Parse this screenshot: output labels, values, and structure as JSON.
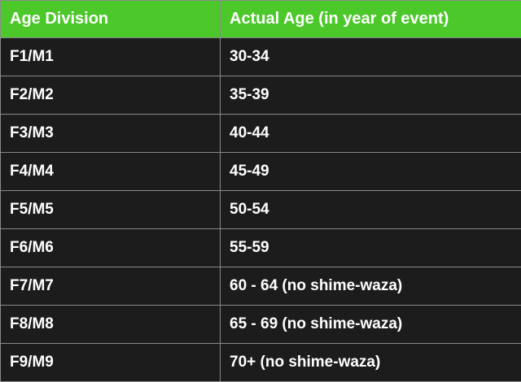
{
  "header": {
    "col1": "Age Division",
    "col2": "Actual Age (in year of event)"
  },
  "rows": [
    {
      "division": "F1/M1",
      "age": "30-34"
    },
    {
      "division": "F2/M2",
      "age": "35-39"
    },
    {
      "division": "F3/M3",
      "age": "40-44"
    },
    {
      "division": "F4/M4",
      "age": "45-49"
    },
    {
      "division": "F5/M5",
      "age": "50-54"
    },
    {
      "division": "F6/M6",
      "age": "55-59"
    },
    {
      "division": "F7/M7",
      "age": "60 - 64 (no shime-waza)"
    },
    {
      "division": "F8/M8",
      "age": "65 - 69 (no shime-waza)"
    },
    {
      "division": "F9/M9",
      "age": "70+ (no shime-waza)"
    }
  ],
  "colors": {
    "header_bg": "#4cc82a",
    "body_bg": "#1c1c1c",
    "border": "#8a8a8a",
    "text": "#ffffff"
  }
}
